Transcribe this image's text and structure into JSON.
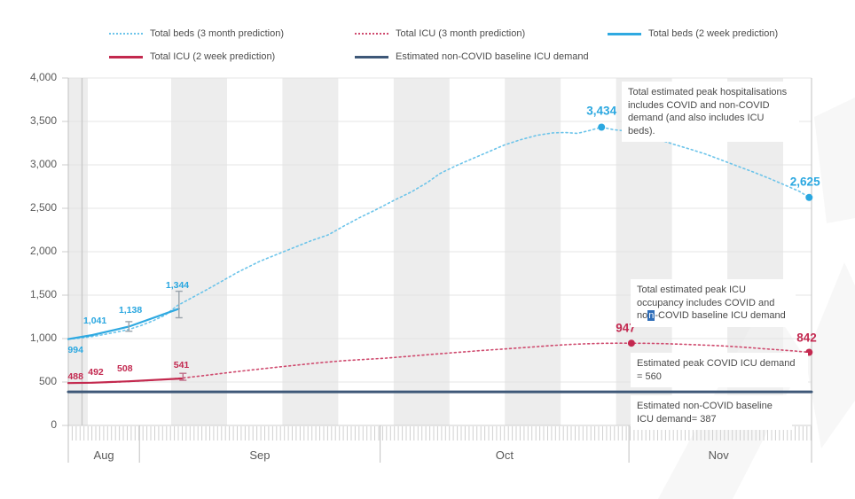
{
  "legend": {
    "items": [
      {
        "label": "Total beds (3 month prediction)",
        "series": "beds_3m"
      },
      {
        "label": "Total ICU (3 month prediction)",
        "series": "icu_3m"
      },
      {
        "label": "Total beds (2 week prediction)",
        "series": "beds_2w"
      },
      {
        "label": "Total ICU  (2 week prediction)",
        "series": "icu_2w"
      },
      {
        "label": "Estimated non-COVID baseline ICU demand",
        "series": "baseline"
      }
    ]
  },
  "annotations": {
    "peak_hosp": "Total estimated peak hospitalisations includes COVID and non-COVID demand (and also includes ICU beds).",
    "icu_peak": {
      "before": "Total estimated peak ICU occupancy includes COVID and no",
      "highlight": "n",
      "after": "-COVID baseline ICU demand"
    },
    "covid_icu": "Estimated peak COVID ICU demand = 560",
    "baseline_icu": "Estimated non-COVID baseline ICU demand= 387"
  },
  "chart_data": {
    "type": "line",
    "title": "",
    "x_axis": {
      "unit": "days from chart start (late Aug to late Nov)",
      "months": [
        {
          "label": "Aug",
          "center_day": 4.4
        },
        {
          "label": "Sep",
          "center_day": 23.7
        },
        {
          "label": "Oct",
          "center_day": 54
        },
        {
          "label": "Nov",
          "center_day": 80.5
        }
      ],
      "boundaries_day": [
        0,
        8.8,
        38.6,
        69.4,
        92
      ]
    },
    "y_axis": {
      "min": 0,
      "max": 4000,
      "tick_step": 500,
      "tick_labels": [
        "0",
        "500",
        "1,000",
        "1,500",
        "2,000",
        "2,500",
        "3,000",
        "3,500",
        "4,000"
      ],
      "grid": true
    },
    "series": [
      {
        "name": "beds_3m",
        "label": "Total beds (3 month prediction)",
        "style": "dotted",
        "color": "#6cc4ea",
        "points": [
          [
            0,
            994
          ],
          [
            1.5,
            1005
          ],
          [
            3,
            1025
          ],
          [
            4.5,
            1048
          ],
          [
            6,
            1075
          ],
          [
            7.5,
            1105
          ],
          [
            9,
            1150
          ],
          [
            10.5,
            1205
          ],
          [
            12,
            1270
          ],
          [
            13.5,
            1380
          ],
          [
            15,
            1455
          ],
          [
            17,
            1555
          ],
          [
            19,
            1660
          ],
          [
            21,
            1765
          ],
          [
            23.7,
            1890
          ],
          [
            26,
            1975
          ],
          [
            28,
            2050
          ],
          [
            30,
            2125
          ],
          [
            32.2,
            2195
          ],
          [
            34,
            2290
          ],
          [
            36,
            2390
          ],
          [
            38,
            2480
          ],
          [
            40.5,
            2600
          ],
          [
            42.5,
            2690
          ],
          [
            44.5,
            2800
          ],
          [
            46,
            2900
          ],
          [
            48,
            2990
          ],
          [
            50,
            3070
          ],
          [
            52,
            3150
          ],
          [
            54,
            3230
          ],
          [
            56,
            3290
          ],
          [
            58,
            3340
          ],
          [
            60,
            3368
          ],
          [
            61.5,
            3372
          ],
          [
            63,
            3362
          ],
          [
            64.5,
            3395
          ],
          [
            66,
            3434
          ],
          [
            67.5,
            3405
          ],
          [
            69,
            3390
          ],
          [
            70,
            3378
          ],
          [
            71,
            3360
          ],
          [
            73,
            3295
          ],
          [
            75,
            3235
          ],
          [
            77,
            3180
          ],
          [
            79,
            3120
          ],
          [
            81,
            3050
          ],
          [
            83,
            2980
          ],
          [
            85,
            2910
          ],
          [
            87,
            2835
          ],
          [
            89,
            2755
          ],
          [
            90.5,
            2695
          ],
          [
            91.7,
            2625
          ]
        ]
      },
      {
        "name": "icu_3m",
        "label": "Total ICU (3 month prediction)",
        "style": "dotted",
        "color": "#cf4a6e",
        "points": [
          [
            0,
            488
          ],
          [
            2,
            491
          ],
          [
            4,
            495
          ],
          [
            6,
            500
          ],
          [
            8,
            508
          ],
          [
            10,
            518
          ],
          [
            12,
            530
          ],
          [
            14,
            545
          ],
          [
            16,
            565
          ],
          [
            18,
            588
          ],
          [
            20,
            610
          ],
          [
            22,
            632
          ],
          [
            25,
            662
          ],
          [
            28,
            692
          ],
          [
            31,
            720
          ],
          [
            34,
            745
          ],
          [
            37,
            762
          ],
          [
            39,
            772
          ],
          [
            42,
            795
          ],
          [
            45,
            818
          ],
          [
            48,
            840
          ],
          [
            51,
            861
          ],
          [
            54,
            881
          ],
          [
            57,
            900
          ],
          [
            60,
            920
          ],
          [
            62,
            932
          ],
          [
            64,
            940
          ],
          [
            66,
            945
          ],
          [
            68,
            947
          ],
          [
            69.7,
            947
          ],
          [
            72,
            945
          ],
          [
            74,
            941
          ],
          [
            76,
            935
          ],
          [
            78,
            928
          ],
          [
            80,
            920
          ],
          [
            82,
            910
          ],
          [
            84,
            898
          ],
          [
            86,
            884
          ],
          [
            88,
            870
          ],
          [
            90,
            856
          ],
          [
            91.7,
            842
          ]
        ]
      },
      {
        "name": "beds_2w",
        "label": "Total beds (2 week prediction)",
        "style": "solid",
        "color": "#2fa9e1",
        "points": [
          [
            0,
            994
          ],
          [
            3,
            1041
          ],
          [
            7.5,
            1138
          ],
          [
            13.7,
            1344
          ]
        ]
      },
      {
        "name": "icu_2w",
        "label": "Total ICU  (2 week prediction)",
        "style": "solid",
        "color": "#c3294e",
        "points": [
          [
            0,
            488
          ],
          [
            3,
            492
          ],
          [
            7.5,
            508
          ],
          [
            14.2,
            541
          ]
        ]
      },
      {
        "name": "baseline",
        "label": "Estimated non-COVID baseline ICU demand",
        "style": "solid",
        "color": "#3e5878",
        "points": [
          [
            0,
            387
          ],
          [
            92,
            387
          ]
        ]
      }
    ],
    "markers": [
      {
        "series": "beds_3m",
        "day": 66,
        "value": 3434
      },
      {
        "series": "beds_3m",
        "day": 91.7,
        "value": 2625
      },
      {
        "series": "icu_3m",
        "day": 69.7,
        "value": 947
      },
      {
        "series": "icu_3m",
        "day": 91.7,
        "value": 842
      }
    ],
    "error_bars": [
      {
        "series": "beds_2w",
        "day": 7.5,
        "low": 1085,
        "high": 1195
      },
      {
        "series": "beds_2w",
        "day": 13.7,
        "low": 1240,
        "high": 1545
      },
      {
        "series": "icu_2w",
        "day": 14.2,
        "low": 520,
        "high": 600
      }
    ],
    "value_labels": [
      {
        "text": "994",
        "series": "beds_2w",
        "day": 0.9,
        "value": 994,
        "dy": 12,
        "size": "s"
      },
      {
        "text": "1,041",
        "series": "beds_2w",
        "day": 3.3,
        "value": 1041,
        "dy": -16,
        "size": "s"
      },
      {
        "text": "1,138",
        "series": "beds_2w",
        "day": 7.7,
        "value": 1138,
        "dy": -19,
        "size": "s"
      },
      {
        "text": "1,344",
        "series": "beds_2w",
        "day": 13.5,
        "value": 1344,
        "dy": -26,
        "size": "s"
      },
      {
        "text": "3,434",
        "series": "beds_3m",
        "day": 66,
        "value": 3434,
        "dy": -19,
        "size": "l"
      },
      {
        "text": "2,625",
        "series": "beds_3m",
        "day": 91.2,
        "value": 2625,
        "dy": -18,
        "size": "l"
      },
      {
        "text": "488",
        "series": "icu_2w",
        "day": 0.9,
        "value": 488,
        "dy": -7,
        "size": "s"
      },
      {
        "text": "492",
        "series": "icu_2w",
        "day": 3.4,
        "value": 492,
        "dy": -12,
        "size": "s"
      },
      {
        "text": "508",
        "series": "icu_2w",
        "day": 7,
        "value": 508,
        "dy": -14,
        "size": "s"
      },
      {
        "text": "541",
        "series": "icu_2w",
        "day": 14,
        "value": 541,
        "dy": -15,
        "size": "s"
      },
      {
        "text": "947",
        "series": "icu_3m",
        "day": 69,
        "value": 947,
        "dy": -17,
        "size": "l"
      },
      {
        "text": "842",
        "series": "icu_3m",
        "day": 91.4,
        "value": 842,
        "dy": -17,
        "size": "l"
      }
    ],
    "key_values": {
      "peak_total_beds": 3434,
      "end_total_beds": 2625,
      "peak_total_icu": 947,
      "end_total_icu": 842,
      "peak_covid_icu_demand": 560,
      "non_covid_baseline_icu_demand": 387
    },
    "colors": {
      "beds_label": "#2aa7e0",
      "icu_label": "#c32950",
      "baseline_line": "#3e5878",
      "grid": "#e4e4e4",
      "band": "#ededed"
    }
  }
}
